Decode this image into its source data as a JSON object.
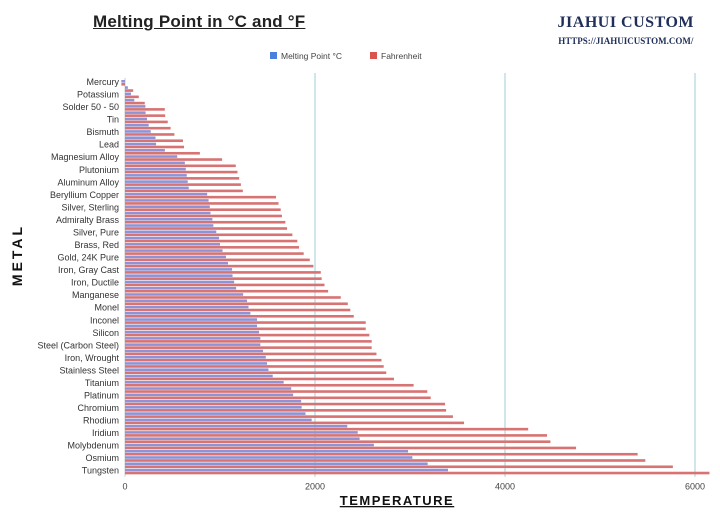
{
  "chart_data": {
    "type": "bar",
    "orientation": "horizontal",
    "title": "Melting Point in °C and °F",
    "xlabel": "TEMPERATURE",
    "ylabel": "METAL",
    "xlim": [
      0,
      6200
    ],
    "xticks": [
      0,
      2000,
      4000,
      6000
    ],
    "grid": "vertical",
    "legend": "top-center",
    "categories": [
      "Mercury",
      "",
      "Potassium",
      "",
      "Solder 50 - 50",
      "",
      "Tin",
      "",
      "Bismuth",
      "",
      "Lead",
      "",
      "Magnesium Alloy",
      "",
      "Plutonium",
      "",
      "Aluminum Alloy",
      "",
      "Beryllium Copper",
      "",
      "Silver, Sterling",
      "",
      "Admiralty Brass",
      "",
      "Silver, Pure",
      "",
      "Brass, Red",
      "",
      "Gold, 24K Pure",
      "",
      "Iron, Gray Cast",
      "",
      "Iron, Ductile",
      "",
      "Manganese",
      "",
      "Monel",
      "",
      "Inconel",
      "",
      "Silicon",
      "",
      "Steel (Carbon Steel)",
      "",
      "Iron, Wrought",
      "",
      "Stainless Steel",
      "",
      "Titanium",
      "",
      "Platinum",
      "",
      "Chromium",
      "",
      "Rhodium",
      "",
      "Iridium",
      "",
      "Molybdenum",
      "",
      "Osmium",
      "",
      "Tungsten"
    ],
    "series": [
      {
        "name": "Melting Point °C",
        "color": "#8f93d6",
        "values": [
          -39,
          30,
          63,
          98,
          215,
          217,
          232,
          249,
          271,
          321,
          327,
          420,
          550,
          630,
          640,
          650,
          660,
          671,
          865,
          880,
          893,
          900,
          920,
          930,
          961,
          990,
          1000,
          1027,
          1063,
          1084,
          1127,
          1132,
          1149,
          1170,
          1244,
          1285,
          1300,
          1320,
          1390,
          1390,
          1411,
          1425,
          1425,
          1453,
          1482,
          1495,
          1510,
          1555,
          1670,
          1750,
          1770,
          1854,
          1860,
          1900,
          1965,
          2340,
          2450,
          2470,
          2620,
          2980,
          3025,
          3186,
          3400
        ]
      },
      {
        "name": "Fahrenheit",
        "color": "#d77373",
        "values": [
          -38,
          86,
          145,
          208,
          419,
          423,
          450,
          480,
          520,
          610,
          621,
          788,
          1022,
          1166,
          1184,
          1202,
          1220,
          1240,
          1589,
          1616,
          1639,
          1652,
          1688,
          1706,
          1762,
          1814,
          1832,
          1881,
          1945,
          1983,
          2061,
          2070,
          2100,
          2138,
          2271,
          2345,
          2372,
          2408,
          2534,
          2534,
          2572,
          2597,
          2597,
          2647,
          2700,
          2723,
          2750,
          2831,
          3038,
          3182,
          3218,
          3369,
          3380,
          3452,
          3569,
          4244,
          4442,
          4478,
          4748,
          5396,
          5477,
          5767,
          6152
        ]
      }
    ],
    "legend_swatch_colors": [
      "#4a7fe0",
      "#d9534f"
    ],
    "grid_color": "#9fcfd6"
  },
  "brand": {
    "name": "JIAHUI CUSTOM",
    "url": "HTTPS://JIAHUICUSTOM.COM/"
  }
}
